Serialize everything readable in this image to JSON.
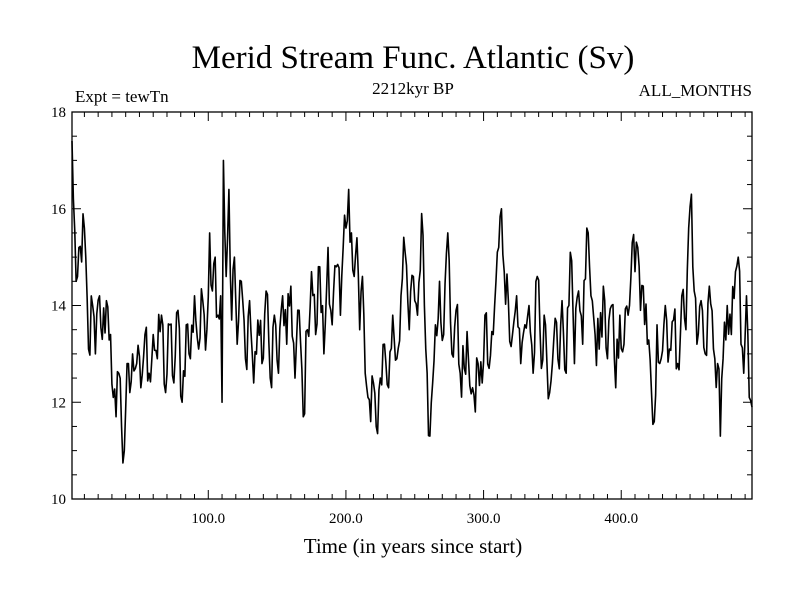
{
  "chart_data": {
    "type": "line",
    "title": "Merid Stream Func. Atlantic (Sv)",
    "subtitle_left": "Expt = tewTn",
    "subtitle_center": "2212kyr BP",
    "subtitle_right": "ALL_MONTHS",
    "xlabel": "Time (in years since start)",
    "ylabel": "",
    "xlim": [
      1,
      495
    ],
    "ylim": [
      10,
      18
    ],
    "xticks": [
      100,
      200,
      300,
      400
    ],
    "xtick_labels": [
      "100.0",
      "200.0",
      "300.0",
      "400.0"
    ],
    "yticks": [
      10,
      12,
      14,
      16,
      18
    ],
    "ytick_labels": [
      "10",
      "12",
      "14",
      "16",
      "18"
    ],
    "series": [
      {
        "name": "Merid Stream Func. Atlantic",
        "color": "#000000",
        "anchors": [
          [
            1,
            17.4
          ],
          [
            2,
            16.2
          ],
          [
            4,
            14.5
          ],
          [
            6,
            15.2
          ],
          [
            8,
            14.9
          ],
          [
            10,
            15.6
          ],
          [
            13,
            13.1
          ],
          [
            16,
            14.0
          ],
          [
            18,
            13.0
          ],
          [
            21,
            14.2
          ],
          [
            23,
            13.3
          ],
          [
            26,
            14.1
          ],
          [
            29,
            13.4
          ],
          [
            31,
            12.1
          ],
          [
            33,
            11.7
          ],
          [
            35,
            12.6
          ],
          [
            37,
            11.5
          ],
          [
            39,
            11.0
          ],
          [
            41,
            12.8
          ],
          [
            43,
            12.2
          ],
          [
            45,
            13.0
          ],
          [
            48,
            12.8
          ],
          [
            51,
            12.3
          ],
          [
            54,
            13.4
          ],
          [
            57,
            12.6
          ],
          [
            60,
            13.4
          ],
          [
            63,
            12.9
          ],
          [
            66,
            13.8
          ],
          [
            69,
            12.2
          ],
          [
            72,
            13.6
          ],
          [
            75,
            12.4
          ],
          [
            78,
            13.9
          ],
          [
            81,
            12.0
          ],
          [
            84,
            13.6
          ],
          [
            87,
            12.9
          ],
          [
            90,
            14.2
          ],
          [
            93,
            13.1
          ],
          [
            96,
            14.1
          ],
          [
            99,
            13.5
          ],
          [
            101,
            15.5
          ],
          [
            103,
            14.3
          ],
          [
            105,
            15.0
          ],
          [
            107,
            13.8
          ],
          [
            109,
            14.2
          ],
          [
            110,
            12.0
          ],
          [
            111,
            17.0
          ],
          [
            113,
            14.6
          ],
          [
            115,
            16.4
          ],
          [
            117,
            13.7
          ],
          [
            119,
            15.0
          ],
          [
            121,
            13.2
          ],
          [
            124,
            14.5
          ],
          [
            127,
            12.9
          ],
          [
            130,
            14.1
          ],
          [
            133,
            12.4
          ],
          [
            136,
            13.7
          ],
          [
            139,
            12.8
          ],
          [
            142,
            14.3
          ],
          [
            145,
            12.5
          ],
          [
            148,
            13.8
          ],
          [
            151,
            12.6
          ],
          [
            154,
            14.2
          ],
          [
            157,
            13.2
          ],
          [
            160,
            14.4
          ],
          [
            163,
            12.5
          ],
          [
            166,
            13.9
          ],
          [
            169,
            11.7
          ],
          [
            172,
            13.5
          ],
          [
            175,
            14.7
          ],
          [
            178,
            13.4
          ],
          [
            181,
            14.8
          ],
          [
            184,
            13.0
          ],
          [
            187,
            15.2
          ],
          [
            190,
            13.6
          ],
          [
            193,
            14.8
          ],
          [
            196,
            13.8
          ],
          [
            198,
            15.2
          ],
          [
            200,
            15.6
          ],
          [
            202,
            16.4
          ],
          [
            204,
            15.5
          ],
          [
            206,
            14.6
          ],
          [
            208,
            15.4
          ],
          [
            210,
            13.5
          ],
          [
            212,
            14.6
          ],
          [
            214,
            12.6
          ],
          [
            216,
            12.1
          ],
          [
            218,
            11.6
          ],
          [
            220,
            12.4
          ],
          [
            222,
            11.5
          ],
          [
            225,
            12.5
          ],
          [
            228,
            13.2
          ],
          [
            231,
            12.3
          ],
          [
            234,
            13.8
          ],
          [
            237,
            12.9
          ],
          [
            240,
            14.2
          ],
          [
            243,
            15.1
          ],
          [
            246,
            13.5
          ],
          [
            249,
            14.6
          ],
          [
            252,
            13.8
          ],
          [
            255,
            15.9
          ],
          [
            257,
            14.0
          ],
          [
            259,
            12.6
          ],
          [
            261,
            11.3
          ],
          [
            263,
            12.4
          ],
          [
            265,
            13.6
          ],
          [
            268,
            14.5
          ],
          [
            271,
            13.4
          ],
          [
            274,
            15.5
          ],
          [
            277,
            13.0
          ],
          [
            280,
            13.9
          ],
          [
            283,
            12.6
          ],
          [
            286,
            12.7
          ],
          [
            289,
            12.9
          ],
          [
            292,
            12.3
          ],
          [
            294,
            11.8
          ],
          [
            296,
            12.8
          ],
          [
            299,
            12.4
          ],
          [
            301,
            13.8
          ],
          [
            304,
            12.7
          ],
          [
            307,
            13.4
          ],
          [
            309,
            14.5
          ],
          [
            311,
            15.2
          ],
          [
            313,
            16.0
          ],
          [
            315,
            14.7
          ],
          [
            318,
            14.1
          ],
          [
            321,
            13.4
          ],
          [
            324,
            14.2
          ],
          [
            327,
            12.8
          ],
          [
            330,
            13.6
          ],
          [
            333,
            14.0
          ],
          [
            336,
            12.6
          ],
          [
            339,
            14.6
          ],
          [
            342,
            12.7
          ],
          [
            345,
            13.6
          ],
          [
            348,
            12.2
          ],
          [
            351,
            13.3
          ],
          [
            354,
            12.9
          ],
          [
            357,
            14.1
          ],
          [
            360,
            12.6
          ],
          [
            363,
            15.1
          ],
          [
            366,
            12.8
          ],
          [
            369,
            14.3
          ],
          [
            372,
            13.2
          ],
          [
            375,
            15.6
          ],
          [
            378,
            14.2
          ],
          [
            381,
            13.4
          ],
          [
            384,
            13.1
          ],
          [
            387,
            14.4
          ],
          [
            390,
            12.9
          ],
          [
            393,
            14.0
          ],
          [
            396,
            12.3
          ],
          [
            399,
            13.8
          ],
          [
            402,
            13.2
          ],
          [
            405,
            13.8
          ],
          [
            408,
            15.3
          ],
          [
            410,
            14.7
          ],
          [
            412,
            15.2
          ],
          [
            414,
            13.9
          ],
          [
            416,
            14.4
          ],
          [
            419,
            13.2
          ],
          [
            422,
            12.2
          ],
          [
            424,
            11.6
          ],
          [
            426,
            13.6
          ],
          [
            429,
            12.9
          ],
          [
            432,
            14.0
          ],
          [
            435,
            13.1
          ],
          [
            438,
            13.7
          ],
          [
            441,
            12.8
          ],
          [
            444,
            14.2
          ],
          [
            447,
            13.5
          ],
          [
            449,
            15.6
          ],
          [
            451,
            16.3
          ],
          [
            453,
            14.3
          ],
          [
            455,
            13.2
          ],
          [
            458,
            14.1
          ],
          [
            461,
            13.0
          ],
          [
            464,
            14.4
          ],
          [
            467,
            13.1
          ],
          [
            470,
            12.8
          ],
          [
            472,
            11.3
          ],
          [
            474,
            12.9
          ],
          [
            477,
            14.0
          ],
          [
            480,
            13.4
          ],
          [
            483,
            14.7
          ],
          [
            485,
            15.0
          ],
          [
            487,
            13.2
          ],
          [
            489,
            12.6
          ],
          [
            491,
            14.2
          ],
          [
            493,
            12.1
          ],
          [
            495,
            11.9
          ]
        ]
      }
    ]
  }
}
